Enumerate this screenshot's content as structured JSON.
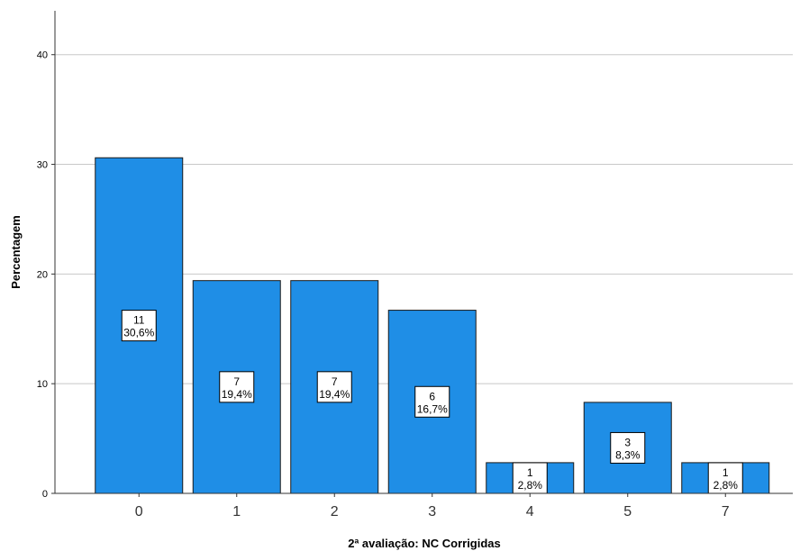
{
  "chart_data": {
    "type": "bar",
    "title": "",
    "xlabel": "2ª avaliação: NC Corrigidas",
    "ylabel": "Percentagem",
    "categories": [
      "0",
      "1",
      "2",
      "3",
      "4",
      "5",
      "7"
    ],
    "values": [
      30.6,
      19.4,
      19.4,
      16.7,
      2.8,
      8.3,
      2.8
    ],
    "counts": [
      11,
      7,
      7,
      6,
      1,
      3,
      1
    ],
    "data_labels": [
      {
        "count": "11",
        "percent": "30,6%"
      },
      {
        "count": "7",
        "percent": "19,4%"
      },
      {
        "count": "7",
        "percent": "19,4%"
      },
      {
        "count": "6",
        "percent": "16,7%"
      },
      {
        "count": "1",
        "percent": "2,8%"
      },
      {
        "count": "3",
        "percent": "8,3%"
      },
      {
        "count": "1",
        "percent": "2,8%"
      }
    ],
    "ylim": [
      0,
      44
    ],
    "yticks": [
      0,
      10,
      20,
      30,
      40
    ],
    "ytick_labels": [
      "0",
      "10",
      "20",
      "30",
      "40"
    ],
    "grid": true,
    "bar_color": "#1f8ee6",
    "bar_border_color": "#1a1a1a",
    "grid_color": "#c8c8c8"
  }
}
